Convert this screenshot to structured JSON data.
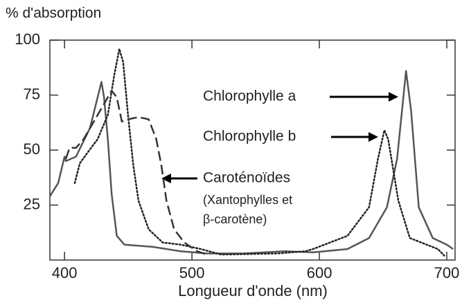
{
  "chart_data": {
    "type": "line",
    "y_label": "% d'absorption",
    "x_label": "Longueur d'onde (nm)",
    "xlim": [
      388.5,
      706.5
    ],
    "ylim": [
      0,
      100
    ],
    "xticks": [
      400,
      500,
      600,
      700
    ],
    "yticks": [
      25,
      50,
      75,
      100
    ],
    "series": [
      {
        "name": "Chlorophylle a",
        "color": "#555555",
        "style": "solid",
        "x": [
          388.5,
          395,
          400,
          401,
          409,
          420,
          429,
          431,
          434,
          437,
          441,
          447,
          469,
          491,
          512,
          540,
          573,
          595,
          622,
          639,
          653,
          661,
          668,
          672,
          678,
          689,
          700,
          705
        ],
        "values": [
          29,
          35,
          47,
          45,
          47,
          60,
          81,
          74,
          55,
          30,
          11,
          7,
          6,
          4,
          3,
          3,
          4,
          3.5,
          5,
          10,
          24,
          46,
          86,
          68,
          24,
          10,
          7,
          5
        ]
      },
      {
        "name": "Chlorophylle b",
        "color": "#222222",
        "style": "dotted",
        "x": [
          408,
          412,
          417,
          426,
          434,
          439,
          443,
          446,
          450,
          454,
          458,
          466,
          477,
          491,
          507,
          523,
          567,
          589,
          595,
          622,
          639,
          646,
          651,
          654,
          662,
          671,
          682,
          693,
          698
        ],
        "values": [
          35,
          44,
          48,
          55,
          66,
          84,
          96,
          90,
          65,
          43,
          27,
          14,
          8,
          7,
          5,
          2.5,
          3,
          4,
          5,
          11,
          24,
          46,
          59,
          55,
          27,
          10,
          7.5,
          5,
          2
        ]
      },
      {
        "name": "Caroténoïdes",
        "color": "#333333",
        "style": "dashed",
        "x": [
          401,
          404,
          409,
          415,
          423,
          431,
          437,
          441,
          445,
          450,
          458,
          466,
          472,
          476,
          480,
          486,
          494,
          504,
          512
        ],
        "values": [
          46,
          51,
          51,
          55,
          63,
          71,
          77,
          74,
          63,
          64,
          65,
          64,
          55,
          43,
          27,
          14,
          8,
          4,
          2.5
        ]
      }
    ],
    "annotations": [
      "(Xantophylles et",
      "β-carotène)"
    ]
  }
}
